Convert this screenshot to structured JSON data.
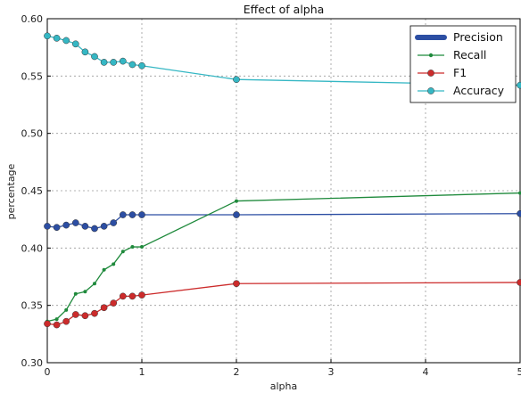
{
  "chart_data": {
    "type": "line",
    "title": "Effect of alpha",
    "xlabel": "alpha",
    "ylabel": "percentage",
    "xlim": [
      0,
      5
    ],
    "ylim": [
      0.3,
      0.6
    ],
    "xticks": [
      "0",
      "1",
      "2",
      "3",
      "4",
      "5"
    ],
    "yticks": [
      "0.30",
      "0.35",
      "0.40",
      "0.45",
      "0.50",
      "0.55",
      "0.60"
    ],
    "grid": true,
    "legend_position": "top-right",
    "x": [
      0,
      0.1,
      0.2,
      0.3,
      0.4,
      0.5,
      0.6,
      0.7,
      0.8,
      0.9,
      1.0,
      2,
      5
    ],
    "series": [
      {
        "name": "Precision",
        "color": "#2c4ea3",
        "marker": "circle",
        "values": [
          0.419,
          0.418,
          0.42,
          0.422,
          0.419,
          0.417,
          0.419,
          0.422,
          0.429,
          0.429,
          0.429,
          0.429,
          0.43
        ]
      },
      {
        "name": "Recall",
        "color": "#1f8a3c",
        "marker": "dot",
        "values": [
          0.336,
          0.338,
          0.346,
          0.36,
          0.362,
          0.369,
          0.381,
          0.386,
          0.397,
          0.401,
          0.401,
          0.441,
          0.448
        ]
      },
      {
        "name": "F1",
        "color": "#cc2b2b",
        "marker": "circle",
        "values": [
          0.334,
          0.333,
          0.336,
          0.342,
          0.341,
          0.343,
          0.348,
          0.352,
          0.358,
          0.358,
          0.359,
          0.369,
          0.37
        ]
      },
      {
        "name": "Accuracy",
        "color": "#35b7c4",
        "marker": "circle",
        "values": [
          0.585,
          0.583,
          0.581,
          0.578,
          0.571,
          0.567,
          0.562,
          0.562,
          0.563,
          0.56,
          0.559,
          0.547,
          0.542
        ]
      }
    ]
  }
}
